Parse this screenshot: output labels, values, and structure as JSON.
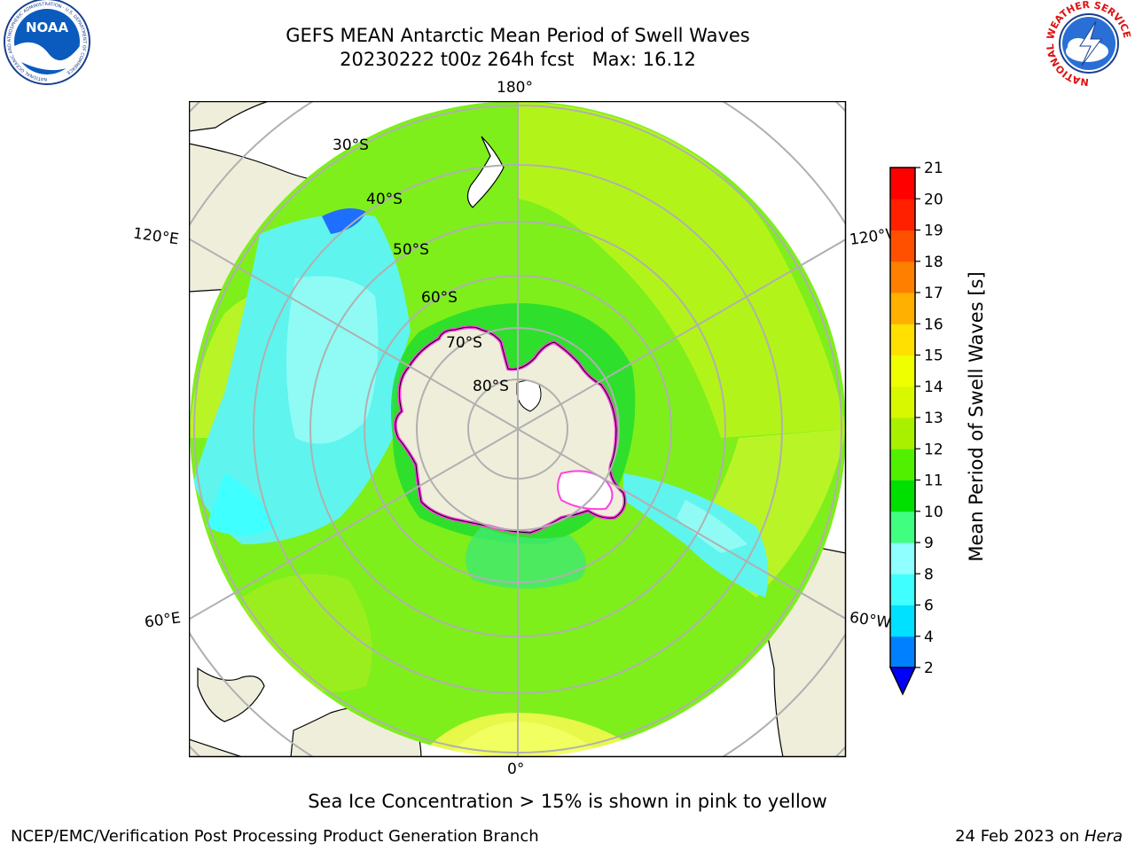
{
  "header": {
    "title_line1": "GEFS MEAN Antarctic Mean Period of Swell Waves",
    "title_line2": "20230222 t00z 264h fcst   Max: 16.12"
  },
  "logos": {
    "left": "NOAA",
    "left_ring": "NATIONAL OCEANIC AND ATMOSPHERIC ADMINISTRATION · U.S. DEPARTMENT OF COMMERCE",
    "right_ring": "NATIONAL WEATHER SERVICE"
  },
  "map": {
    "lon_labels": {
      "top": "180°",
      "bottom": "0°",
      "left_upper": "120°E",
      "left_lower": "60°E",
      "right_upper": "120°W",
      "right_lower": "60°W"
    },
    "lat_labels": [
      "30°S",
      "40°S",
      "50°S",
      "60°S",
      "70°S",
      "80°S"
    ]
  },
  "colorbar": {
    "label": "Mean Period of Swell Waves [s]",
    "ticks": [
      "2",
      "4",
      "6",
      "8",
      "9",
      "10",
      "11",
      "12",
      "13",
      "14",
      "15",
      "16",
      "17",
      "18",
      "19",
      "20",
      "21"
    ],
    "colors": [
      "#0000ff",
      "#0080ff",
      "#00e0ff",
      "#40ffff",
      "#90ffff",
      "#40ff80",
      "#00e000",
      "#50f000",
      "#a8f000",
      "#d8f800",
      "#f0ff00",
      "#ffe000",
      "#ffb000",
      "#ff8000",
      "#ff5000",
      "#ff2000",
      "#ff0000"
    ]
  },
  "caption": "Sea Ice Concentration > 15% is shown in pink to yellow",
  "footer": {
    "left": "NCEP/EMC/Verification Post Processing Product Generation Branch",
    "right_prefix": "24 Feb 2023 on ",
    "right_italic": "Hera"
  }
}
